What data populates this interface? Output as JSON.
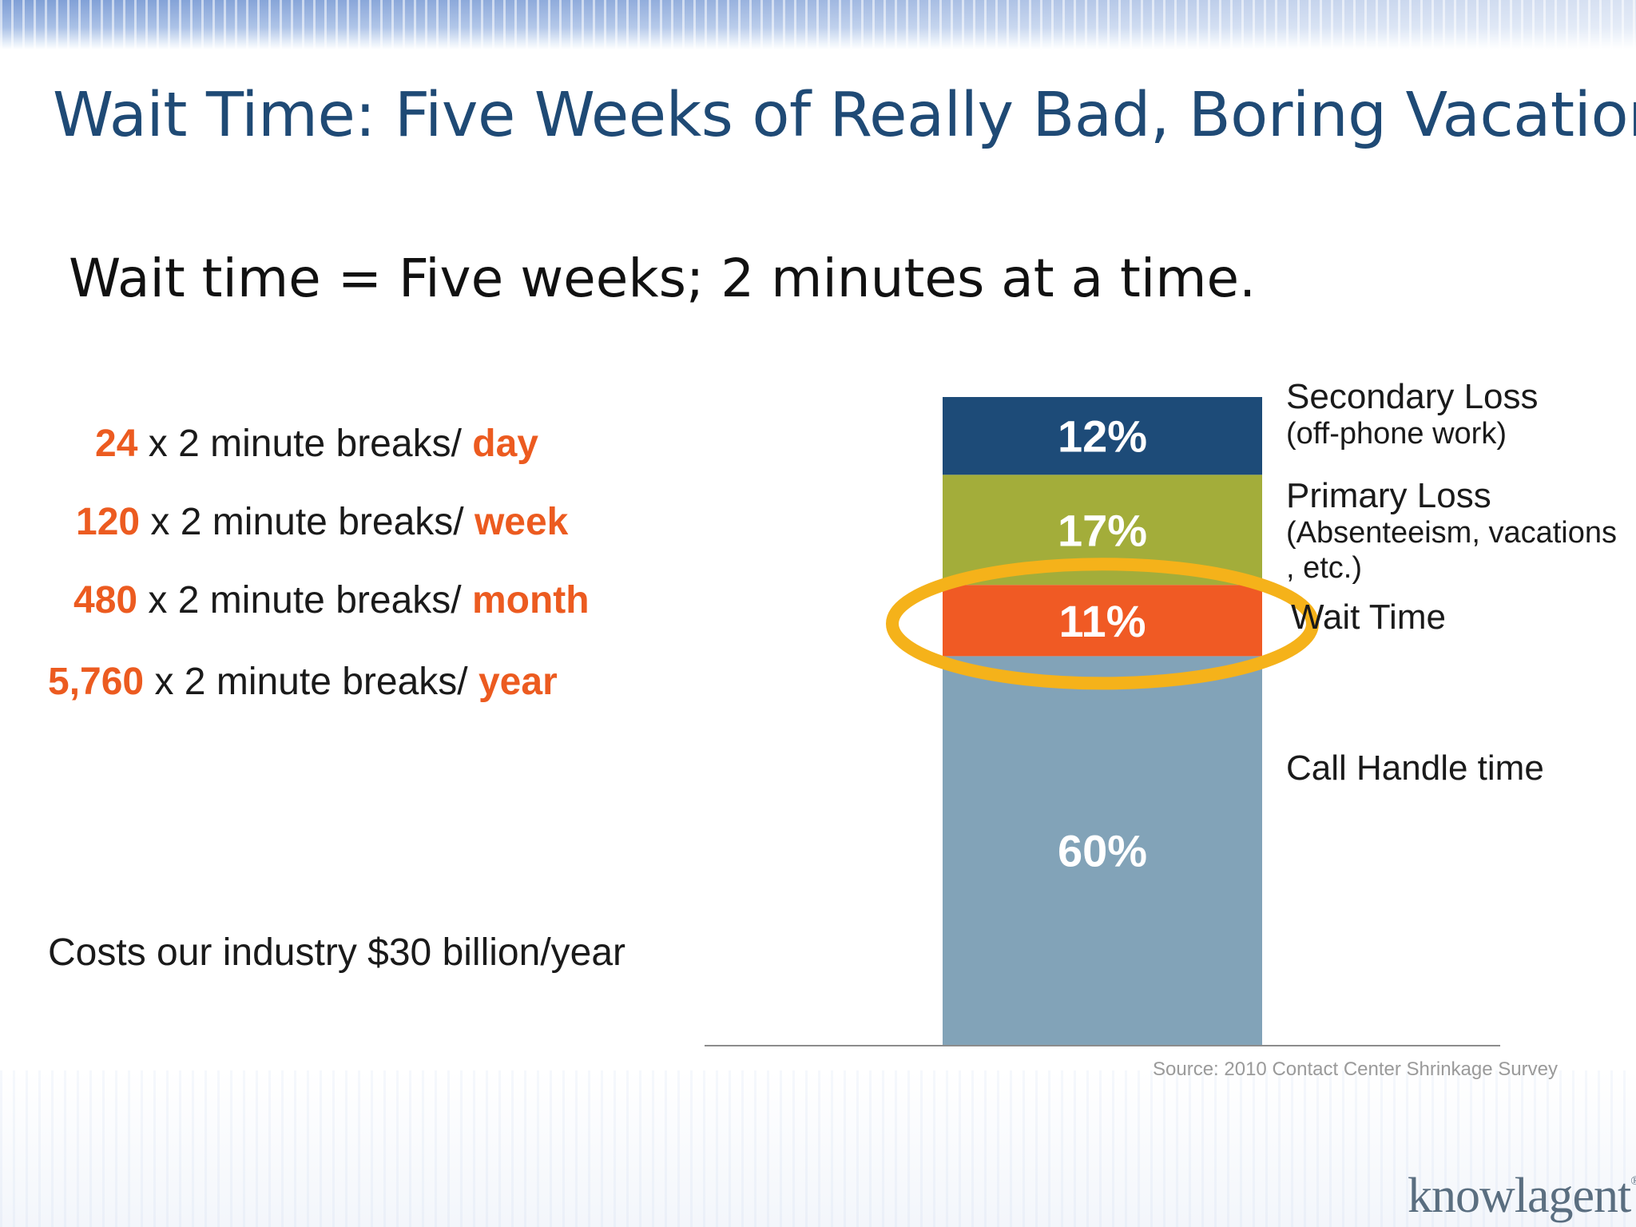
{
  "slide": {
    "title": "Wait Time: Five Weeks of Really Bad, Boring Vacation",
    "subtitle": "Wait time = Five weeks; 2 minutes at a time."
  },
  "breaks": [
    {
      "count": "24",
      "text": " x 2 minute breaks/ ",
      "unit": "day"
    },
    {
      "count": "120",
      "text": " x 2 minute breaks/ ",
      "unit": "week"
    },
    {
      "count": "480",
      "text": " x 2 minute breaks/ ",
      "unit": "month"
    },
    {
      "count": "5,760",
      "text": " x 2 minute breaks/ ",
      "unit": "year"
    }
  ],
  "cost_text": "Costs our industry $30 billion/year",
  "chart_data": {
    "type": "bar",
    "stacked": true,
    "unit": "%",
    "highlighted": "Wait Time",
    "series": [
      {
        "name": "Call Handle time",
        "sub": "",
        "value": 60,
        "label": "60%",
        "color": "#82a3b8"
      },
      {
        "name": "Wait Time",
        "sub": "",
        "value": 11,
        "label": "11%",
        "color": "#f05a24"
      },
      {
        "name": "Primary Loss",
        "sub": "(Absenteeism, vacations\n, etc.)",
        "value": 17,
        "label": "17%",
        "color": "#a3ad3a"
      },
      {
        "name": "Secondary Loss",
        "sub": "(off-phone work)",
        "value": 12,
        "label": "12%",
        "color": "#1d4b78"
      }
    ],
    "highlight_color": "#f5b21a",
    "source": "Source: 2010 Contact Center Shrinkage Survey"
  },
  "logo": {
    "text": "knowlagent",
    "mark": "®"
  }
}
